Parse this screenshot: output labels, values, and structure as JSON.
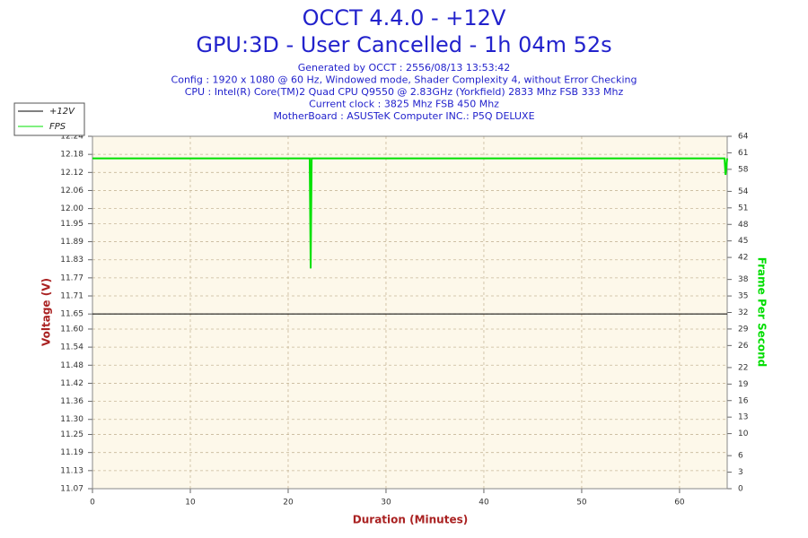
{
  "chart_data": {
    "type": "line",
    "title": "OCCT 4.4.0 - +12V",
    "subtitle": "GPU:3D - User Cancelled - 1h 04m 52s",
    "info": [
      "Generated by OCCT : 2556/08/13 13:53:42",
      "Config : 1920 x 1080 @ 60 Hz, Windowed mode, Shader Complexity 4, without Error Checking",
      "CPU : Intel(R) Core(TM)2 Quad CPU Q9550 @ 2.83GHz (Yorkfield) 2833 Mhz FSB 333 Mhz",
      "Current clock : 3825 Mhz FSB 450 Mhz",
      "MotherBoard : ASUSTeK Computer INC.: P5Q DELUXE"
    ],
    "x_label": "Duration (Minutes)",
    "y_label": "Voltage (V)",
    "y2_label": "Frame Per Second",
    "xlim": [
      0,
      64.87
    ],
    "xticks": [
      0,
      10,
      20,
      30,
      40,
      50,
      60
    ],
    "ylim": [
      11.07,
      12.24
    ],
    "yticks": [
      11.07,
      11.13,
      11.19,
      11.25,
      {
        "value": 11.3,
        "label": "11.30"
      },
      11.36,
      11.42,
      11.48,
      11.54,
      {
        "value": 11.6,
        "label": "11.60"
      },
      11.65,
      11.71,
      11.77,
      11.83,
      11.89,
      11.95,
      {
        "value": 12,
        "label": "12.00"
      },
      12.06,
      12.12,
      12.18,
      12.24
    ],
    "y2lim": [
      0,
      64
    ],
    "y2ticks": [
      0,
      3,
      6,
      10,
      13,
      16,
      19,
      22,
      26,
      29,
      32,
      35,
      38,
      42,
      45,
      48,
      51,
      54,
      58,
      61,
      64
    ],
    "grid": true,
    "legend": "top-left",
    "series": [
      {
        "name": "+12V",
        "color": "#000000",
        "x": [
          0,
          64.87
        ],
        "values": [
          11.65,
          11.65
        ]
      },
      {
        "name": "FPS",
        "color": "#00e000",
        "axis": "y2",
        "x": [
          0,
          22.2,
          22.3,
          22.4,
          64.6,
          64.7,
          64.87
        ],
        "values": [
          60,
          60,
          40,
          60,
          60,
          57,
          60
        ]
      }
    ]
  }
}
